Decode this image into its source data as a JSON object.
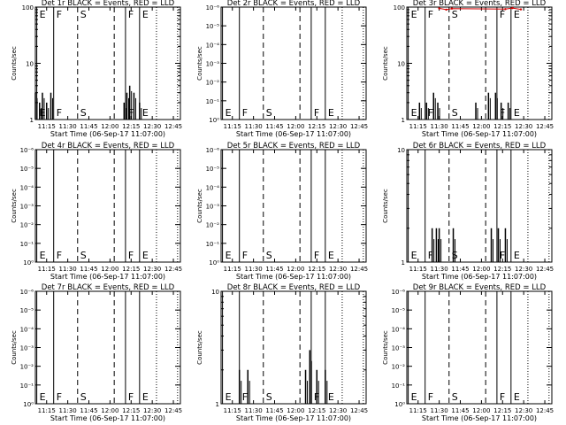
{
  "chart_data": {
    "type": "line",
    "x_tick_labels": [
      "11:15",
      "11:30",
      "11:45",
      "12:00",
      "12:15",
      "12:30",
      "12:45"
    ],
    "x_range": [
      "11:07",
      "12:50"
    ],
    "xlabel": "Start Time (06-Sep-17 11:07:00)",
    "ylabel": "Counts/sec",
    "segment_markers": [
      {
        "label": "E",
        "time": "11:08",
        "line": "solid"
      },
      {
        "label": "F",
        "time": "11:20",
        "line": "solid"
      },
      {
        "label": "S",
        "time": "11:37",
        "line": "dashed"
      },
      {
        "label": "",
        "time": "12:03",
        "line": "dashed"
      },
      {
        "label": "F",
        "time": "12:11",
        "line": "solid"
      },
      {
        "label": "E",
        "time": "12:21",
        "line": "solid"
      },
      {
        "label": "",
        "time": "12:33",
        "line": "dotted"
      },
      {
        "label": "",
        "time": "12:48",
        "line": "dotted"
      }
    ],
    "panels": [
      {
        "title": "Det 1r BLACK = Events, RED = LLD",
        "scale": "log",
        "ytick_labels": [
          "1",
          "10",
          "100"
        ],
        "ylim": [
          1,
          100
        ],
        "events": [
          {
            "t": "11:07",
            "v": 3
          },
          {
            "t": "11:10",
            "v": 2
          },
          {
            "t": "11:12",
            "v": 3
          },
          {
            "t": "11:15",
            "v": 2
          },
          {
            "t": "11:18",
            "v": 3
          },
          {
            "t": "12:10",
            "v": 2
          },
          {
            "t": "12:12",
            "v": 3
          },
          {
            "t": "12:14",
            "v": 4
          },
          {
            "t": "12:17",
            "v": 3
          },
          {
            "t": "12:21",
            "v": 2
          }
        ],
        "lld": []
      },
      {
        "title": "Det 2r BLACK = Events, RED = LLD",
        "scale": "log",
        "ytick_labels": [
          "10⁰",
          "10⁻¹",
          "10⁻²",
          "10⁻³",
          "10⁻⁴",
          "10⁻⁵",
          "10⁻⁶"
        ],
        "ylim": [
          0,
          6
        ],
        "events": [],
        "lld": []
      },
      {
        "title": "Det 3r BLACK = Events, RED = LLD",
        "scale": "log",
        "ytick_labels": [
          "1",
          "10",
          "100"
        ],
        "ylim": [
          1,
          100
        ],
        "events": [
          {
            "t": "11:16",
            "v": 2
          },
          {
            "t": "11:21",
            "v": 2
          },
          {
            "t": "11:26",
            "v": 3
          },
          {
            "t": "11:29",
            "v": 2
          },
          {
            "t": "11:56",
            "v": 2
          },
          {
            "t": "12:05",
            "v": 3
          },
          {
            "t": "12:10",
            "v": 3
          },
          {
            "t": "12:14",
            "v": 2
          },
          {
            "t": "12:19",
            "v": 2
          }
        ],
        "lld": [
          {
            "t": "11:30",
            "v": 95
          },
          {
            "t": "11:35",
            "v": 90
          },
          {
            "t": "11:39",
            "v": 94
          },
          {
            "t": "12:17",
            "v": 92
          },
          {
            "t": "12:22",
            "v": 96
          },
          {
            "t": "12:28",
            "v": 91
          }
        ]
      },
      {
        "title": "Det 4r BLACK = Events, RED = LLD",
        "scale": "log",
        "ytick_labels": [
          "10⁰",
          "10⁻¹",
          "10⁻²",
          "10⁻³",
          "10⁻⁴",
          "10⁻⁵",
          "10⁻⁶"
        ],
        "ylim": [
          0,
          6
        ],
        "events": [],
        "lld": []
      },
      {
        "title": "Det 5r BLACK = Events, RED = LLD",
        "scale": "log",
        "ytick_labels": [
          "10⁰",
          "10⁻¹",
          "10⁻²",
          "10⁻³",
          "10⁻⁴",
          "10⁻⁵",
          "10⁻⁶"
        ],
        "ylim": [
          0,
          6
        ],
        "events": [],
        "lld": []
      },
      {
        "title": "Det 6r BLACK = Events, RED = LLD",
        "scale": "log",
        "ytick_labels": [
          "1",
          "10"
        ],
        "ylim": [
          1,
          10
        ],
        "events": [
          {
            "t": "11:25",
            "v": 2
          },
          {
            "t": "11:28",
            "v": 2
          },
          {
            "t": "11:30",
            "v": 2
          },
          {
            "t": "11:40",
            "v": 2
          },
          {
            "t": "12:07",
            "v": 2
          },
          {
            "t": "12:12",
            "v": 2
          },
          {
            "t": "12:17",
            "v": 2
          }
        ],
        "lld": []
      },
      {
        "title": "Det 7r BLACK = Events, RED = LLD",
        "scale": "log",
        "ytick_labels": [
          "10⁰",
          "10⁻¹",
          "10⁻²",
          "10⁻³",
          "10⁻⁴",
          "10⁻⁵",
          "10⁻⁶"
        ],
        "ylim": [
          0,
          6
        ],
        "events": [],
        "lld": []
      },
      {
        "title": "Det 8r BLACK = Events, RED = LLD",
        "scale": "log",
        "ytick_labels": [
          "1",
          "10"
        ],
        "ylim": [
          1,
          10
        ],
        "events": [
          {
            "t": "11:20",
            "v": 2
          },
          {
            "t": "11:26",
            "v": 2
          },
          {
            "t": "12:07",
            "v": 2
          },
          {
            "t": "12:10",
            "v": 3
          },
          {
            "t": "12:15",
            "v": 2
          },
          {
            "t": "12:21",
            "v": 2
          }
        ],
        "lld": []
      },
      {
        "title": "Det 9r BLACK = Events, RED = LLD",
        "scale": "log",
        "ytick_labels": [
          "10⁰",
          "10⁻¹",
          "10⁻²",
          "10⁻³",
          "10⁻⁴",
          "10⁻⁵",
          "10⁻⁶"
        ],
        "ylim": [
          0,
          6
        ],
        "events": [],
        "lld": []
      }
    ]
  }
}
